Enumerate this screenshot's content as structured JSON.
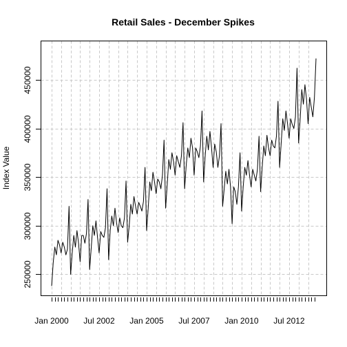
{
  "chart_data": {
    "type": "line",
    "title": "Retail Sales - December Spikes",
    "xlabel": "",
    "ylabel": "Index Value",
    "start": {
      "year": 2000,
      "month": 1
    },
    "end": {
      "year": 2013,
      "month": 12
    },
    "frequency": "monthly",
    "xlim": [
      "Jan 2000",
      "Dec 2013"
    ],
    "ylim": [
      228000,
      490000
    ],
    "x_tick_labels": [
      {
        "label": "Jan 2000",
        "year": 2000,
        "month": 1
      },
      {
        "label": "Jul 2002",
        "year": 2002,
        "month": 7
      },
      {
        "label": "Jan 2005",
        "year": 2005,
        "month": 1
      },
      {
        "label": "Jul 2007",
        "year": 2007,
        "month": 7
      },
      {
        "label": "Jan 2010",
        "year": 2010,
        "month": 1
      },
      {
        "label": "Jul 2012",
        "year": 2012,
        "month": 7
      }
    ],
    "y_ticks": [
      250000,
      300000,
      350000,
      400000,
      450000
    ],
    "y_tick_labels": [
      "250000",
      "300000",
      "350000",
      "400000",
      "450000"
    ],
    "grid": true,
    "series": [
      {
        "values": [
          238000,
          262000,
          278000,
          270000,
          285000,
          280000,
          272000,
          283000,
          278000,
          270000,
          276000,
          320000,
          250000,
          272000,
          290000,
          278000,
          295000,
          282000,
          263000,
          290000,
          290000,
          282000,
          292000,
          327000,
          255000,
          277000,
          300000,
          290000,
          305000,
          288000,
          272000,
          294000,
          290000,
          288000,
          298000,
          338000,
          265000,
          295000,
          310000,
          300000,
          318000,
          303000,
          293000,
          308000,
          300000,
          298000,
          308000,
          346000,
          283000,
          300000,
          322000,
          312000,
          330000,
          320000,
          312000,
          324000,
          320000,
          315000,
          325000,
          360000,
          295000,
          318000,
          345000,
          336000,
          355000,
          345000,
          333000,
          348000,
          345000,
          338000,
          352000,
          388000,
          318000,
          342000,
          368000,
          358000,
          375000,
          366000,
          352000,
          372000,
          366000,
          360000,
          372000,
          406000,
          338000,
          362000,
          380000,
          370000,
          390000,
          380000,
          352000,
          380000,
          376000,
          370000,
          382000,
          418000,
          345000,
          372000,
          392000,
          378000,
          397000,
          380000,
          360000,
          384000,
          376000,
          360000,
          372000,
          405000,
          320000,
          338000,
          356000,
          343000,
          358000,
          340000,
          302000,
          340000,
          335000,
          322000,
          340000,
          375000,
          315000,
          340000,
          360000,
          352000,
          367000,
          352000,
          340000,
          358000,
          352000,
          346000,
          358000,
          392000,
          335000,
          360000,
          382000,
          372000,
          393000,
          380000,
          372000,
          388000,
          382000,
          380000,
          392000,
          428000,
          360000,
          385000,
          410000,
          398000,
          418000,
          405000,
          390000,
          410000,
          404000,
          400000,
          412000,
          462000,
          385000,
          410000,
          440000,
          425000,
          445000,
          430000,
          405000,
          432000,
          422000,
          412000,
          432000,
          472000
        ]
      }
    ]
  }
}
